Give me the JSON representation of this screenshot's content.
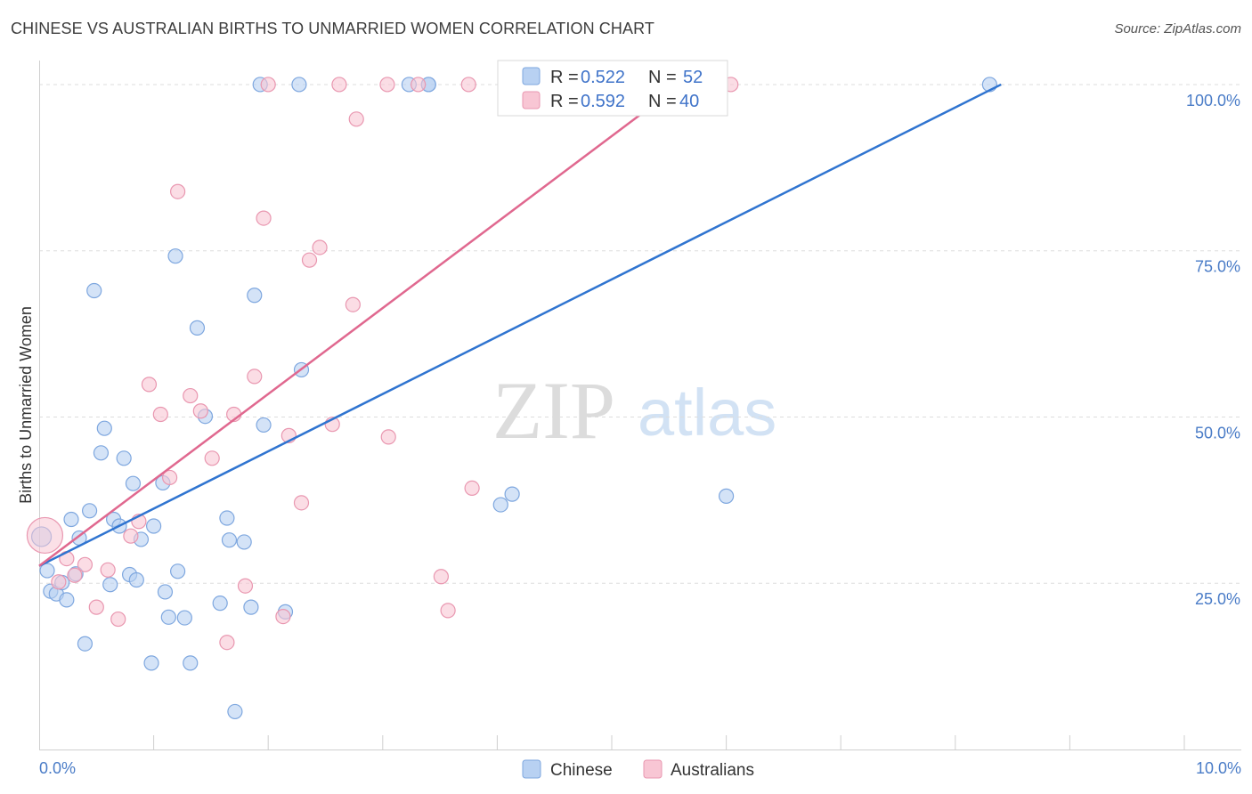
{
  "header": {
    "title": "CHINESE VS AUSTRALIAN BIRTHS TO UNMARRIED WOMEN CORRELATION CHART",
    "source": "Source: ZipAtlas.com"
  },
  "watermark": {
    "zip": "ZIP",
    "atlas": "atlas"
  },
  "legend": {
    "r_label": "R =",
    "n_label": "N =",
    "rows": [
      {
        "series": "Chinese",
        "r": "0.522",
        "n": "52"
      },
      {
        "series": "Australians",
        "r": "0.592",
        "n": "40"
      }
    ]
  },
  "colors": {
    "chinese_fill": "#b8d1f2",
    "chinese_stroke": "#7ea7df",
    "chinese_line": "#2f74d0",
    "australian_fill": "#f8c6d4",
    "australian_stroke": "#e997b0",
    "australian_line": "#e0688f",
    "tick_text": "#4a7cc7",
    "grid": "#dddddd"
  },
  "chart_data": {
    "type": "scatter",
    "title": "CHINESE VS AUSTRALIAN BIRTHS TO UNMARRIED WOMEN CORRELATION CHART",
    "xlabel": "",
    "ylabel": "Births to Unmarried Women",
    "xlim": [
      0,
      10
    ],
    "ylim": [
      0,
      102
    ],
    "x_tick_labels": [
      "0.0%",
      "10.0%"
    ],
    "y_ticks": [
      25,
      50,
      75,
      100
    ],
    "y_tick_labels": [
      "25.0%",
      "50.0%",
      "75.0%",
      "100.0%"
    ],
    "legend_position": "top-center",
    "series": [
      {
        "name": "Chinese",
        "r": 0.522,
        "n": 52,
        "trend": {
          "x": [
            0,
            8.4
          ],
          "y": [
            27.6,
            100
          ]
        },
        "points": [
          [
            0.02,
            32.0
          ],
          [
            0.07,
            26.9
          ],
          [
            0.1,
            23.8
          ],
          [
            0.15,
            23.4
          ],
          [
            0.2,
            25.1
          ],
          [
            0.24,
            22.5
          ],
          [
            0.28,
            34.6
          ],
          [
            0.32,
            26.4
          ],
          [
            0.35,
            31.8
          ],
          [
            0.4,
            15.9
          ],
          [
            0.44,
            35.9
          ],
          [
            0.48,
            69.0
          ],
          [
            0.54,
            44.6
          ],
          [
            0.57,
            48.3
          ],
          [
            0.62,
            24.8
          ],
          [
            0.65,
            34.6
          ],
          [
            0.7,
            33.6
          ],
          [
            0.74,
            43.8
          ],
          [
            0.79,
            26.3
          ],
          [
            0.82,
            40.0
          ],
          [
            0.85,
            25.5
          ],
          [
            0.89,
            31.6
          ],
          [
            0.98,
            13.0
          ],
          [
            1.0,
            33.6
          ],
          [
            1.08,
            40.1
          ],
          [
            1.1,
            23.7
          ],
          [
            1.13,
            19.9
          ],
          [
            1.19,
            74.2
          ],
          [
            1.21,
            26.8
          ],
          [
            1.27,
            19.8
          ],
          [
            1.32,
            13.0
          ],
          [
            1.38,
            63.4
          ],
          [
            1.45,
            50.1
          ],
          [
            1.58,
            22.0
          ],
          [
            1.64,
            34.8
          ],
          [
            1.66,
            31.5
          ],
          [
            1.71,
            5.7
          ],
          [
            1.79,
            31.2
          ],
          [
            1.85,
            21.4
          ],
          [
            1.88,
            68.3
          ],
          [
            1.93,
            100
          ],
          [
            1.96,
            48.8
          ],
          [
            2.15,
            20.7
          ],
          [
            2.27,
            100
          ],
          [
            2.29,
            57.1
          ],
          [
            3.23,
            100
          ],
          [
            3.4,
            100
          ],
          [
            3.4,
            100
          ],
          [
            4.03,
            36.8
          ],
          [
            4.13,
            38.4
          ],
          [
            6.0,
            38.1
          ],
          [
            8.3,
            100
          ]
        ]
      },
      {
        "name": "Australians",
        "r": 0.592,
        "n": 40,
        "trend": {
          "x": [
            0,
            5.6
          ],
          "y": [
            27.6,
            100
          ]
        },
        "points": [
          [
            0.05,
            32.2
          ],
          [
            0.17,
            25.2
          ],
          [
            0.24,
            28.7
          ],
          [
            0.31,
            26.2
          ],
          [
            0.4,
            27.8
          ],
          [
            0.5,
            21.4
          ],
          [
            0.6,
            27.0
          ],
          [
            0.69,
            19.6
          ],
          [
            0.8,
            32.1
          ],
          [
            0.87,
            34.3
          ],
          [
            0.96,
            54.9
          ],
          [
            1.06,
            50.4
          ],
          [
            1.14,
            40.9
          ],
          [
            1.21,
            83.9
          ],
          [
            1.32,
            53.2
          ],
          [
            1.41,
            50.9
          ],
          [
            1.51,
            43.8
          ],
          [
            1.64,
            16.1
          ],
          [
            1.7,
            50.4
          ],
          [
            1.8,
            24.6
          ],
          [
            1.88,
            56.1
          ],
          [
            1.96,
            79.9
          ],
          [
            2.0,
            100
          ],
          [
            2.13,
            20.0
          ],
          [
            2.18,
            47.2
          ],
          [
            2.29,
            37.1
          ],
          [
            2.36,
            73.6
          ],
          [
            2.45,
            75.5
          ],
          [
            2.56,
            48.9
          ],
          [
            2.62,
            100
          ],
          [
            2.74,
            66.9
          ],
          [
            2.77,
            94.8
          ],
          [
            3.04,
            100
          ],
          [
            3.05,
            47.0
          ],
          [
            3.31,
            100
          ],
          [
            3.51,
            26.0
          ],
          [
            3.57,
            20.9
          ],
          [
            3.75,
            100
          ],
          [
            3.78,
            39.3
          ],
          [
            6.04,
            100
          ]
        ]
      }
    ]
  },
  "bottom_legend": {
    "items": [
      "Chinese",
      "Australians"
    ]
  }
}
